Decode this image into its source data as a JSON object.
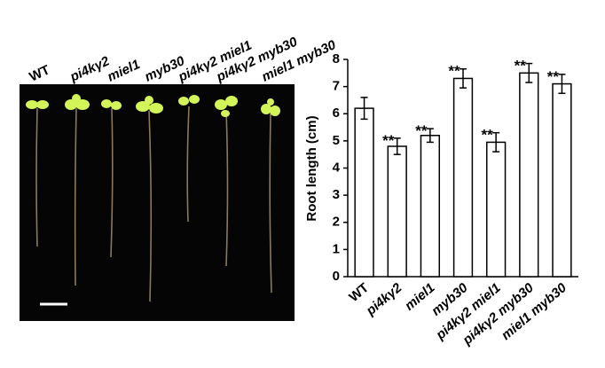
{
  "photo": {
    "labels": [
      "WT",
      "pi4kγ2",
      "miel1",
      "myb30",
      "pi4kγ2 miel1",
      "pi4kγ2 myb30",
      "miel1 myb30"
    ]
  },
  "chart_data": {
    "type": "bar",
    "ylabel": "Root length (cm)",
    "categories": [
      "WT",
      "pi4kγ2",
      "miel1",
      "myb30",
      "pi4kγ2 miel1",
      "pi4kγ2 myb30",
      "miel1 myb30"
    ],
    "values": [
      6.2,
      4.8,
      5.2,
      7.3,
      4.95,
      7.5,
      7.1
    ],
    "errors": [
      0.4,
      0.3,
      0.25,
      0.35,
      0.35,
      0.35,
      0.35
    ],
    "annotations": [
      null,
      "**",
      "**",
      "**",
      "**",
      "**",
      "**"
    ],
    "color": "#ffffff",
    "ylim": [
      0,
      8
    ],
    "yticks": [
      0,
      1,
      2,
      3,
      4,
      5,
      6,
      7,
      8
    ]
  }
}
